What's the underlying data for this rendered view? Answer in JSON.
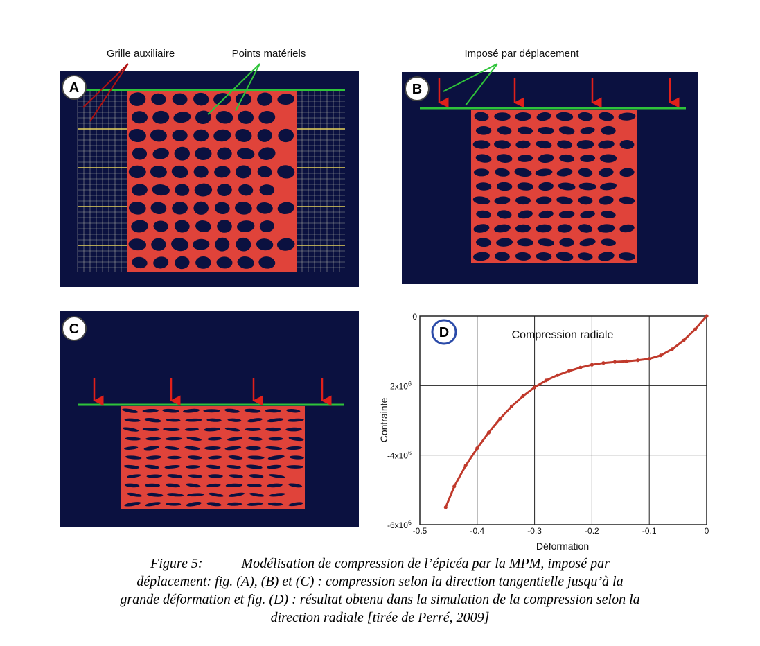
{
  "panels": {
    "A": {
      "letter": "A"
    },
    "B": {
      "letter": "B"
    },
    "C": {
      "letter": "C"
    },
    "D": {
      "letter": "D"
    }
  },
  "annotations": {
    "auxiliary_grid": "Grille auxiliaire",
    "material_points": "Points matériels",
    "imposed_displacement": "Imposé par déplacement"
  },
  "colors": {
    "panel_background": "#0b1140",
    "cells": "#e0433a",
    "boundary": "#2fc43a",
    "arrow": "#e0201a",
    "grid_yellow": "#e8d25a",
    "grid_line": "#c9c9b8",
    "curve": "#c0392b"
  },
  "chart_data": {
    "type": "line",
    "title": "Compression radiale",
    "xlabel": "Déformation",
    "ylabel": "Contrainte",
    "xlim": [
      -0.5,
      0
    ],
    "ylim": [
      -6000000,
      0
    ],
    "x_ticks": [
      "-0.5",
      "-0.4",
      "-0.3",
      "-0.2",
      "-0.1",
      "0"
    ],
    "y_ticks": [
      {
        "mantissa": "0",
        "exp": ""
      },
      {
        "mantissa": "-2x10",
        "exp": "6"
      },
      {
        "mantissa": "-4x10",
        "exp": "6"
      },
      {
        "mantissa": "-6x10",
        "exp": "6"
      }
    ],
    "grid": true,
    "series": [
      {
        "x": [
          -0.455,
          -0.44,
          -0.42,
          -0.4,
          -0.38,
          -0.36,
          -0.34,
          -0.32,
          -0.3,
          -0.28,
          -0.26,
          -0.24,
          -0.22,
          -0.2,
          -0.18,
          -0.16,
          -0.14,
          -0.12,
          -0.1,
          -0.08,
          -0.06,
          -0.04,
          -0.02,
          0.0
        ],
        "y": [
          -5500000,
          -4900000,
          -4300000,
          -3800000,
          -3350000,
          -2950000,
          -2600000,
          -2300000,
          -2050000,
          -1850000,
          -1700000,
          -1580000,
          -1480000,
          -1400000,
          -1350000,
          -1320000,
          -1300000,
          -1270000,
          -1230000,
          -1130000,
          -950000,
          -700000,
          -380000,
          0
        ]
      }
    ]
  },
  "caption": {
    "label": "Figure 5:",
    "line1": "Modélisation de compression de l’épicéa par la MPM, imposé par",
    "line2": "déplacement: fig. (A), (B) et (C) : compression selon la direction tangentielle jusqu’à la",
    "line3": "grande déformation et fig. (D) : résultat obtenu dans la simulation de la compression selon la",
    "line4": "direction radiale [tirée de Perré, 2009]"
  }
}
